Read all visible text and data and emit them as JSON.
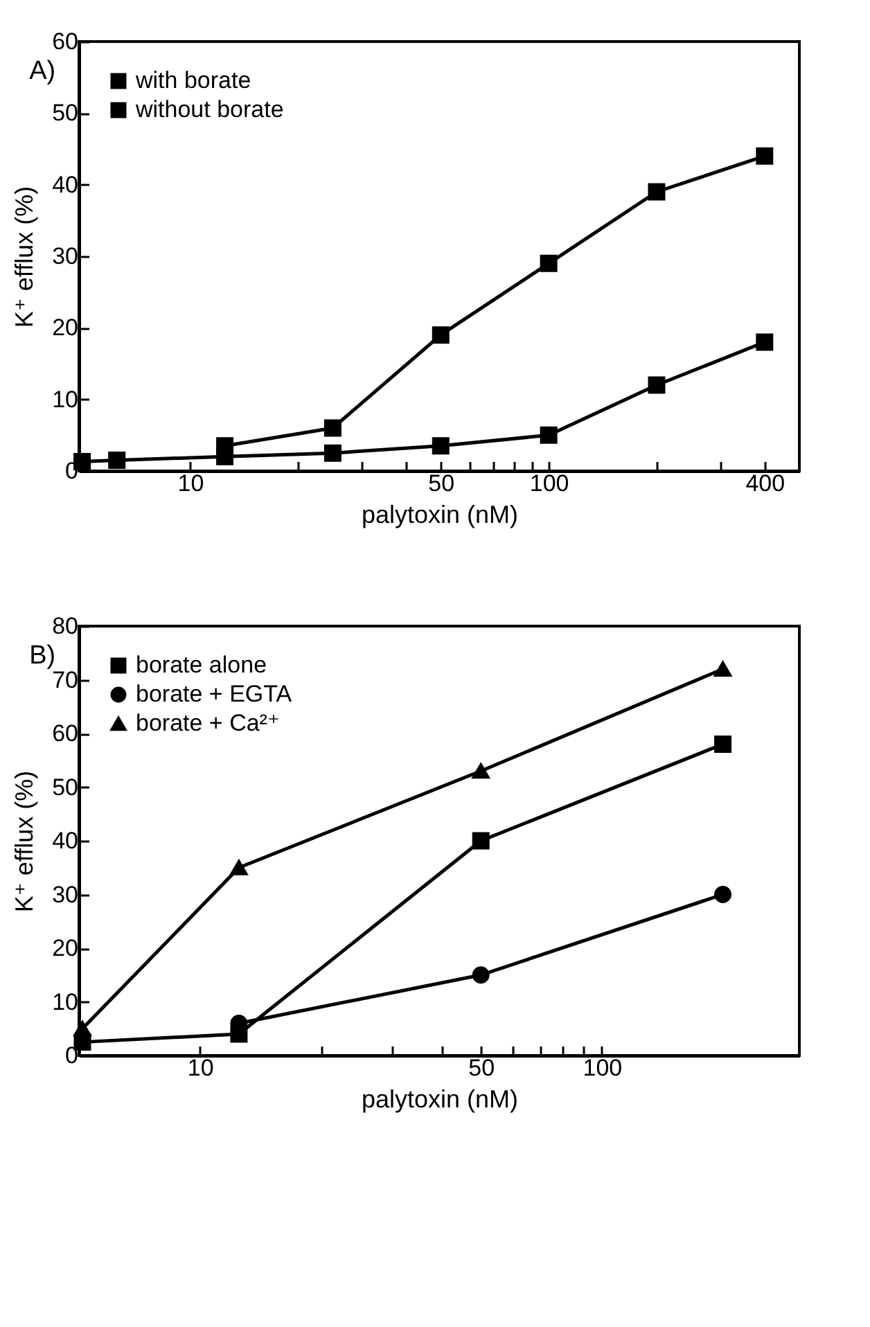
{
  "chart_data": [
    {
      "type": "line",
      "title": "A)",
      "xlabel": "palytoxin (nM)",
      "ylabel": "K⁺ efflux (%)",
      "log": "x",
      "legend": "top left",
      "grid": false,
      "x": [
        5,
        6.25,
        12.5,
        25,
        50,
        100,
        200,
        400
      ],
      "xlim": [
        4.9,
        500
      ],
      "xticks": [
        10,
        {
          "value": 20,
          "label": null
        },
        {
          "value": 30,
          "label": null
        },
        {
          "value": 40,
          "label": null
        },
        50,
        {
          "value": 60,
          "label": null
        },
        {
          "value": 70,
          "label": null
        },
        {
          "value": 80,
          "label": null
        },
        {
          "value": 90,
          "label": null
        },
        100,
        {
          "value": 200,
          "label": null
        },
        {
          "value": 300,
          "label": null
        },
        400
      ],
      "ylim": [
        0,
        60
      ],
      "yticks": [
        0,
        10,
        20,
        30,
        40,
        50,
        60
      ],
      "series": [
        {
          "name": "with borate",
          "color": "#000000",
          "marker": "square",
          "values": [
            null,
            null,
            3.5,
            6,
            19,
            29,
            39,
            44
          ]
        },
        {
          "name": "without borate",
          "color": "#000000",
          "marker": "square",
          "values": [
            1.3,
            1.5,
            2,
            2.5,
            3.5,
            5,
            12,
            18
          ]
        }
      ]
    },
    {
      "type": "line",
      "title": "B)",
      "xlabel": "palytoxin (nM)",
      "ylabel": "K⁺ efflux (%)",
      "log": "x",
      "legend": "top left",
      "grid": false,
      "x": [
        5.1,
        12.5,
        50,
        200
      ],
      "xlim": [
        5,
        310
      ],
      "xticks": [
        10,
        {
          "value": 20,
          "label": null
        },
        {
          "value": 30,
          "label": null
        },
        {
          "value": 40,
          "label": null
        },
        50,
        {
          "value": 60,
          "label": null
        },
        {
          "value": 70,
          "label": null
        },
        {
          "value": 80,
          "label": null
        },
        {
          "value": 90,
          "label": null
        },
        100
      ],
      "ylim": [
        0,
        80
      ],
      "yticks": [
        0,
        10,
        20,
        30,
        40,
        50,
        60,
        70,
        80
      ],
      "series": [
        {
          "name": "borate alone",
          "color": "#000000",
          "marker": "square",
          "values": [
            2.5,
            4,
            40,
            58
          ]
        },
        {
          "name": "borate + EGTA",
          "color": "#000000",
          "marker": "circle",
          "values": [
            null,
            6,
            15,
            30
          ]
        },
        {
          "name": "borate + Ca²⁺",
          "color": "#000000",
          "marker": "triangle",
          "values": [
            5,
            35,
            53,
            72
          ]
        }
      ]
    }
  ]
}
